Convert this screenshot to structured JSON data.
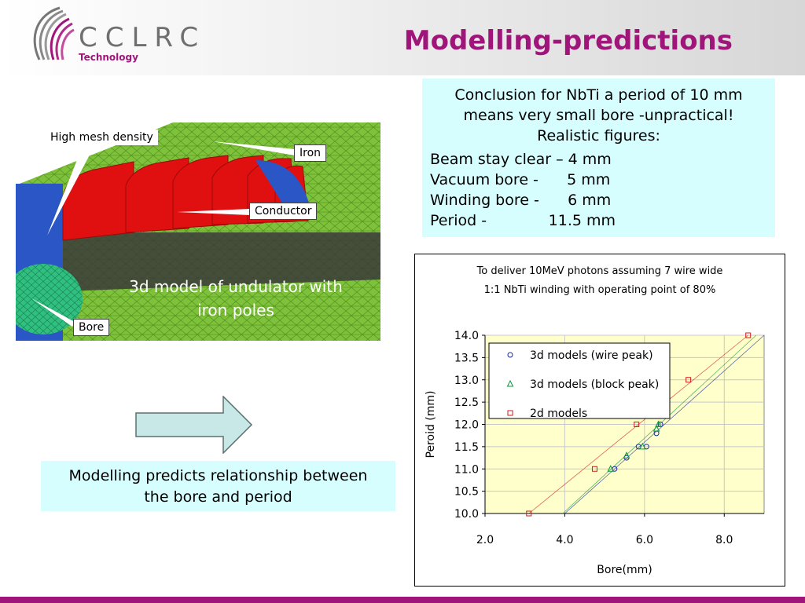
{
  "header": {
    "logo_text": "CCLRC",
    "logo_subtitle": "Technology",
    "title": "Modelling-predictions"
  },
  "model": {
    "callouts": {
      "mesh": "High mesh density",
      "iron": "Iron",
      "conductor": "Conductor",
      "bore": "Bore"
    },
    "caption_line1": "3d model of undulator with",
    "caption_line2": "iron poles"
  },
  "conclusion": {
    "line1": "Conclusion for NbTi a period of 10 mm",
    "line2": "means very small bore -unpractical!",
    "line3": "Realistic figures:",
    "row1": "Beam stay clear – 4 mm",
    "row2": "Vacuum bore -      5 mm",
    "row3": "Winding bore -      6 mm",
    "row4": "Period -             11.5 mm"
  },
  "predicts": {
    "line1": "Modelling predicts relationship between",
    "line2": "the bore and period"
  },
  "colors": {
    "brand": "#a0157a",
    "box_fill": "#d7feff",
    "plot_area": "#ffffcc",
    "mesh_green": "#7dc23a",
    "conductor_red": "#e01010",
    "pole_blue": "#2a56c6"
  },
  "chart_data": {
    "type": "scatter",
    "title_line1": "To deliver 10MeV photons assuming 7 wire wide",
    "title_line2": "1:1 NbTi winding with operating point of 80%",
    "xlabel": "Bore(mm)",
    "ylabel": "Peroid (mm)",
    "xlim": [
      2.0,
      9.0
    ],
    "ylim": [
      10.0,
      14.0
    ],
    "xticks": [
      "2.0",
      "4.0",
      "6.0",
      "8.0"
    ],
    "yticks": [
      "10.0",
      "10.5",
      "11.0",
      "11.5",
      "12.0",
      "12.5",
      "13.0",
      "13.5",
      "14.0"
    ],
    "legend_position": "top-left",
    "series": [
      {
        "name": "3d models (wire peak)",
        "marker": "circle",
        "color": "#1a2a9a",
        "x": [
          5.25,
          5.55,
          5.85,
          6.05,
          6.3,
          6.4
        ],
        "y": [
          11.0,
          11.25,
          11.5,
          11.5,
          11.8,
          12.0
        ],
        "trend": [
          [
            4.0,
            10.0
          ],
          [
            9.0,
            14.0
          ]
        ]
      },
      {
        "name": "3d models (block peak)",
        "marker": "triangle",
        "color": "#0a9a3a",
        "x": [
          5.15,
          5.55,
          5.95,
          6.3,
          6.35
        ],
        "y": [
          11.0,
          11.3,
          11.5,
          11.9,
          12.0
        ],
        "trend": [
          [
            3.95,
            10.0
          ],
          [
            8.8,
            14.0
          ]
        ]
      },
      {
        "name": "2d models",
        "marker": "square",
        "color": "#d21a1a",
        "x": [
          3.1,
          4.75,
          5.8,
          7.1,
          8.6
        ],
        "y": [
          10.0,
          11.0,
          12.0,
          13.0,
          14.0
        ],
        "trend": [
          [
            3.1,
            10.0
          ],
          [
            8.6,
            14.0
          ]
        ]
      }
    ]
  }
}
